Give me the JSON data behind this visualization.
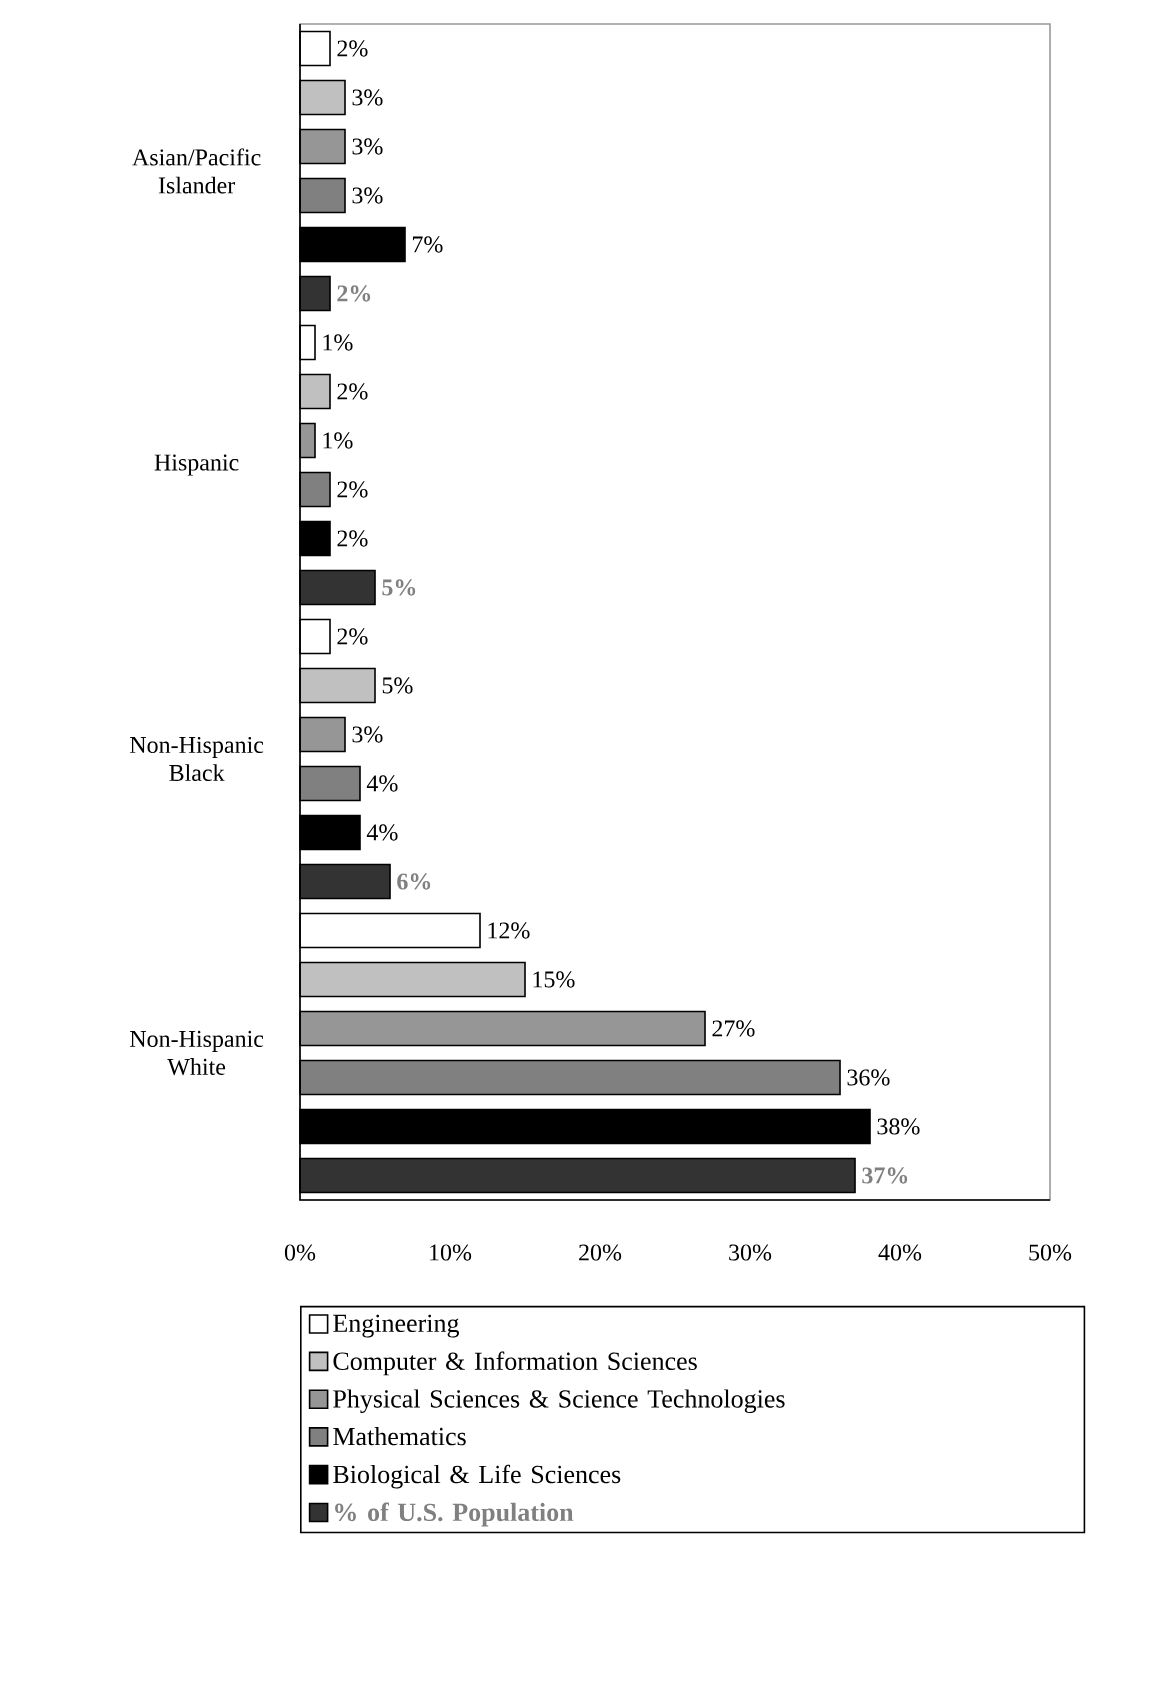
{
  "chart_data": {
    "type": "bar",
    "orientation": "horizontal",
    "categories": [
      "Asian/Pacific Islander",
      "Hispanic",
      "Non-Hispanic Black",
      "Non-Hispanic White"
    ],
    "series": [
      {
        "name": "Engineering",
        "color": "#ffffff",
        "values": [
          2,
          1,
          2,
          12
        ],
        "value_labels": [
          "2%",
          "1%",
          "2%",
          "12%"
        ]
      },
      {
        "name": "Computer & Information Sciences",
        "color": "#c0c0c0",
        "values": [
          3,
          2,
          5,
          15
        ],
        "value_labels": [
          "3%",
          "2%",
          "5%",
          "15%"
        ]
      },
      {
        "name": "Physical Sciences & Science Technologies",
        "color": "#969696",
        "values": [
          3,
          1,
          3,
          27
        ],
        "value_labels": [
          "3%",
          "1%",
          "3%",
          "27%"
        ]
      },
      {
        "name": "Mathematics",
        "color": "#808080",
        "values": [
          3,
          2,
          4,
          36
        ],
        "value_labels": [
          "3%",
          "2%",
          "4%",
          "36%"
        ]
      },
      {
        "name": "Biological & Life Sciences",
        "color": "#000000",
        "values": [
          7,
          2,
          4,
          38
        ],
        "value_labels": [
          "7%",
          "2%",
          "4%",
          "38%"
        ]
      },
      {
        "name": "% of U.S. Population",
        "color": "#333333",
        "values": [
          2,
          5,
          6,
          37
        ],
        "value_labels": [
          "2%",
          "5%",
          "6%",
          "37%"
        ]
      }
    ],
    "xlim": [
      0,
      50
    ],
    "xticks": [
      {
        "value": 0,
        "label": "0%"
      },
      {
        "value": 10,
        "label": "10%"
      },
      {
        "value": 20,
        "label": "20%"
      },
      {
        "value": 30,
        "label": "30%"
      },
      {
        "value": 40,
        "label": "40%"
      },
      {
        "value": 50,
        "label": "50%"
      }
    ],
    "grid": false,
    "legend": "bottom"
  }
}
